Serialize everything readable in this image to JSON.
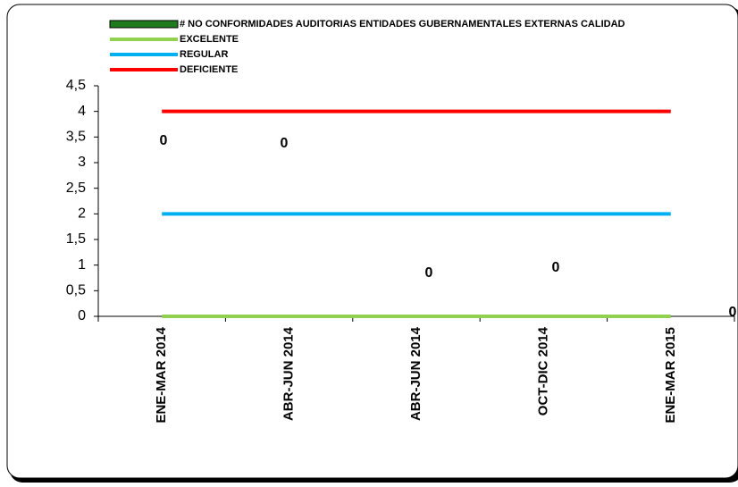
{
  "chart_data": {
    "type": "bar",
    "categories": [
      "ENE-MAR 2014",
      "ABR-JUN 2014",
      "ABR-JUN 2014",
      "OCT-DIC 2014",
      "ENE-MAR 2015"
    ],
    "series": [
      {
        "name": "# NO CONFORMIDADES AUDITORIAS ENTIDADES GUBERNAMENTALES EXTERNAS CALIDAD",
        "type": "bar",
        "color": "#1e7b1e",
        "values": [
          0,
          0,
          0,
          0,
          0
        ]
      },
      {
        "name": "EXCELENTE",
        "type": "line",
        "color": "#92d050",
        "values": [
          0,
          0,
          0,
          0,
          0
        ]
      },
      {
        "name": "REGULAR",
        "type": "line",
        "color": "#00b0f0",
        "values": [
          2,
          2,
          2,
          2,
          2
        ]
      },
      {
        "name": "DEFICIENTE",
        "type": "line",
        "color": "#ff0000",
        "values": [
          4,
          4,
          4,
          4,
          4
        ]
      }
    ],
    "ylim": [
      0,
      4.5
    ],
    "yticks": [
      0,
      {
        "value": 0.5,
        "label": "0,5"
      },
      1,
      {
        "value": 1.5,
        "label": "1,5"
      },
      2,
      {
        "value": 2.5,
        "label": "2,5"
      },
      3,
      {
        "value": 3.5,
        "label": "3,5"
      },
      4,
      {
        "value": 4.5,
        "label": "4,5"
      }
    ],
    "legend": "top"
  }
}
